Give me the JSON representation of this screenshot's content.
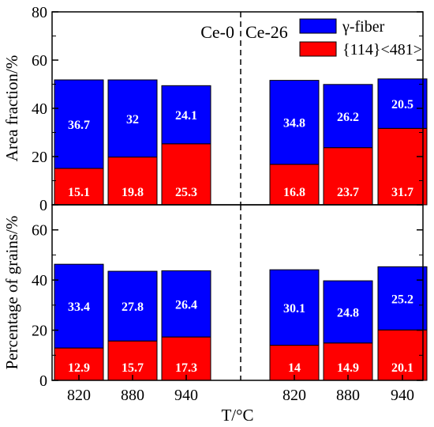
{
  "chart_data": {
    "type": "bar",
    "stacked": true,
    "x_title": "T/°C",
    "groups": [
      "Ce-0",
      "Ce-26"
    ],
    "categories": [
      "820",
      "880",
      "940",
      "820",
      "880",
      "940"
    ],
    "colors": {
      "gamma_fiber": "#0000ff",
      "orientation_114": "#ff0000"
    },
    "legend": {
      "position": "top-right",
      "entries": [
        "γ-fiber",
        "{114}<481>"
      ]
    },
    "panels": [
      {
        "ylabel": "Area fraction/%",
        "ylim": [
          0,
          80
        ],
        "yticks": [
          "0",
          "20",
          "40",
          "60",
          "80"
        ],
        "series": [
          {
            "name": "{114}<481>",
            "values": [
              15.1,
              19.8,
              25.3,
              16.8,
              23.7,
              31.7
            ]
          },
          {
            "name": "γ-fiber",
            "values": [
              36.7,
              32,
              24.1,
              34.8,
              26.2,
              20.5
            ]
          }
        ]
      },
      {
        "ylabel": "Percentage of grains/%",
        "ylim": [
          0,
          70
        ],
        "yticks": [
          "0",
          "20",
          "40",
          "60"
        ],
        "series": [
          {
            "name": "{114}<481>",
            "values": [
              12.9,
              15.7,
              17.3,
              14,
              14.9,
              20.1
            ]
          },
          {
            "name": "γ-fiber",
            "values": [
              33.4,
              27.8,
              26.4,
              30.1,
              24.8,
              25.2
            ]
          }
        ]
      }
    ]
  }
}
